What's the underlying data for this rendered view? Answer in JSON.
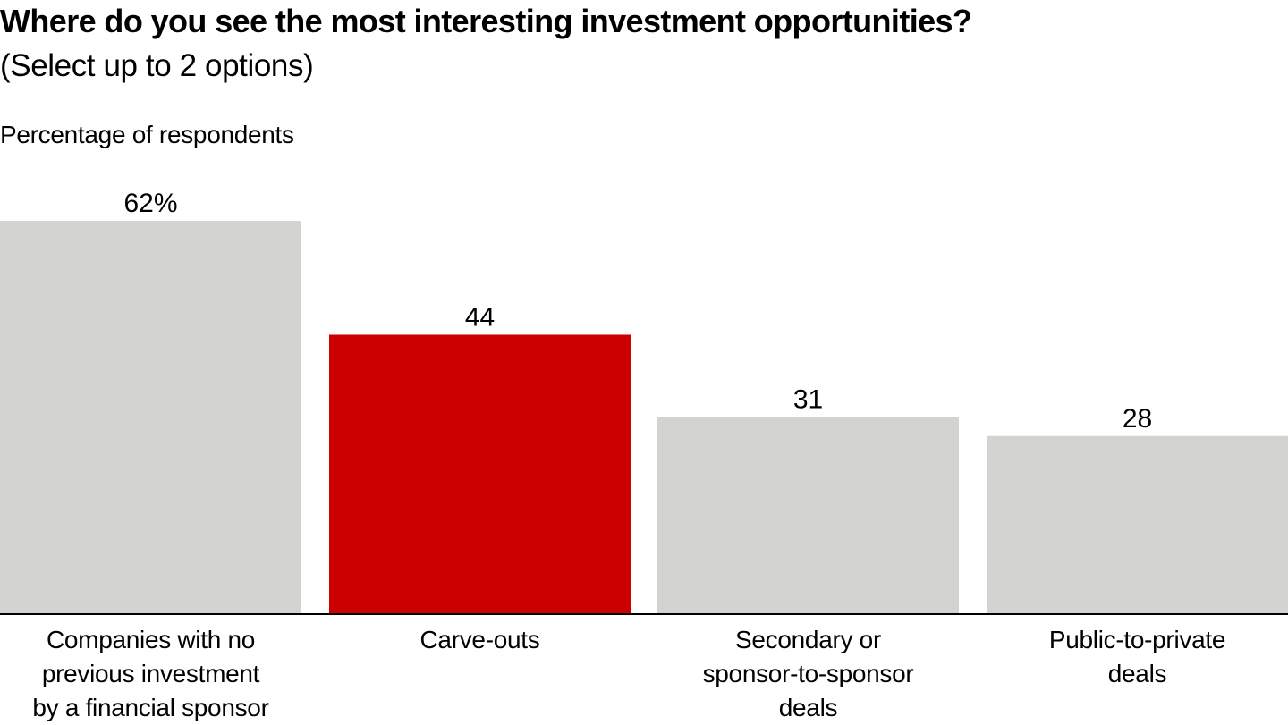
{
  "chart_data": {
    "type": "bar",
    "title": "Where do you see the most interesting investment opportunities?",
    "subtitle": "(Select up to 2 options)",
    "ylabel": "Percentage of respondents",
    "xlabel": "",
    "ylim": [
      0,
      62
    ],
    "grid": false,
    "categories": [
      "Companies with no previous investment by a financial sponsor",
      "Carve-outs",
      "Secondary or sponsor-to-sponsor deals",
      "Public-to-private deals"
    ],
    "category_lines": [
      [
        "Companies with no",
        "previous investment",
        "by a financial sponsor"
      ],
      [
        "Carve-outs"
      ],
      [
        "Secondary or",
        "sponsor-to-sponsor",
        "deals"
      ],
      [
        "Public-to-private",
        "deals"
      ]
    ],
    "values": [
      62,
      44,
      31,
      28
    ],
    "data_labels": [
      "62%",
      "44",
      "31",
      "28"
    ],
    "highlight_index": 1,
    "colors": {
      "default": "#d3d3d2",
      "highlight": "#cc0000",
      "axis": "#000000"
    }
  }
}
